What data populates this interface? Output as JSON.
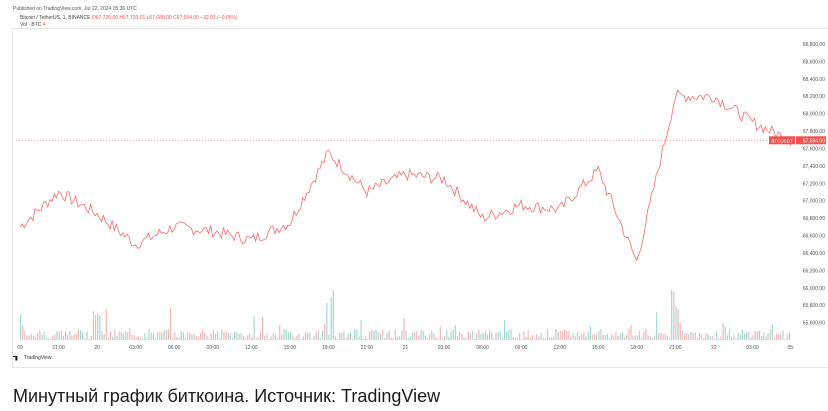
{
  "published": "Published on TradingView.com, Jul 22, 2024 05:36 UTC",
  "legend": {
    "symbol": "Bitcoin / TetherUS, 1, BINANCE",
    "values": "O67,720.00 H67,720.01 L67,688.00 C67,694.00 −32.01 (−0.05%)",
    "volume_label": "Vol · BTC",
    "volume_value": "4"
  },
  "watermark": "TradingView",
  "caption": "Минутный график биткоина. Источник: TradingView",
  "colors": {
    "up": "#26a69a",
    "down": "#ef5350",
    "line": "#f8696b"
  },
  "chart_data": {
    "type": "line",
    "title": "",
    "xlabel": "",
    "ylabel": "",
    "ylim": [
      65400,
      68800
    ],
    "y_ticks": [
      "68,800.00",
      "68,600.00",
      "68,400.00",
      "68,200.00",
      "68,000.00",
      "67,800.00",
      "67,600.00",
      "67,400.00",
      "67,200.00",
      "67,000.00",
      "66,800.00",
      "66,600.00",
      "66,400.00",
      "66,200.00",
      "66,000.00",
      "65,800.00",
      "65,600.00"
    ],
    "x_ticks": [
      "09",
      "21:00",
      "20",
      "03:00",
      "06:00",
      "09:00",
      "12:00",
      "15:00",
      "18:00",
      "21:00",
      "21",
      "03:00",
      "06:00",
      "09:00",
      "12:00",
      "15:00",
      "18:00",
      "21:00",
      "22",
      "03:00",
      "05:"
    ],
    "last_price_label": "BTCUSDT",
    "last_price": "67,694.00",
    "series": [
      {
        "x": [
          "09",
          "21:00",
          "20",
          "03:00",
          "06:00",
          "09:00",
          "12:00",
          "15:00",
          "18:00",
          "21:00",
          "21",
          "03:00",
          "06:00",
          "09:00",
          "12:00",
          "15:00",
          "18:00",
          "21:00",
          "22",
          "03:00",
          "05:"
        ],
        "values": [
          66700,
          67100,
          66850,
          66500,
          66700,
          66650,
          66550,
          66750,
          67550,
          67100,
          67300,
          67250,
          66800,
          66950,
          66900,
          67350,
          66300,
          68200,
          68200,
          67900,
          67690
        ]
      }
    ],
    "volume_spikes_at": [
      "09",
      "20",
      "18:00",
      "21:00"
    ]
  }
}
